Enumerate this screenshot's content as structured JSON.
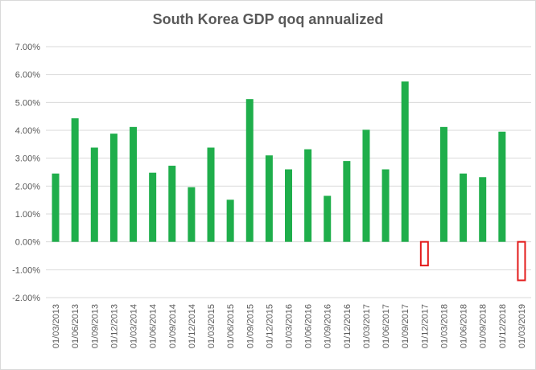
{
  "chart_data": {
    "type": "bar",
    "title": "South Korea GDP qoq annualized",
    "xlabel": "",
    "ylabel": "",
    "ylim": [
      -2,
      7
    ],
    "yticks": [
      -2,
      -1,
      0,
      1,
      2,
      3,
      4,
      5,
      6,
      7
    ],
    "ytick_labels": [
      "-2.00%",
      "-1.00%",
      "0.00%",
      "1.00%",
      "2.00%",
      "3.00%",
      "4.00%",
      "5.00%",
      "6.00%",
      "7.00%"
    ],
    "grid": true,
    "legend": "none",
    "categories": [
      "01/03/2013",
      "01/06/2013",
      "01/09/2013",
      "01/12/2013",
      "01/03/2014",
      "01/06/2014",
      "01/09/2014",
      "01/12/2014",
      "01/03/2015",
      "01/06/2015",
      "01/09/2015",
      "01/12/2015",
      "01/03/2016",
      "01/06/2016",
      "01/09/2016",
      "01/12/2016",
      "01/03/2017",
      "01/06/2017",
      "01/09/2017",
      "01/12/2017",
      "01/03/2018",
      "01/06/2018",
      "01/09/2018",
      "01/12/2018",
      "01/03/2019"
    ],
    "values": [
      2.45,
      4.43,
      3.38,
      3.88,
      4.12,
      2.48,
      2.73,
      1.96,
      3.38,
      1.51,
      5.12,
      3.1,
      2.6,
      3.32,
      1.65,
      2.9,
      4.02,
      2.6,
      5.75,
      -0.85,
      4.12,
      2.45,
      2.32,
      3.95,
      -1.38
    ],
    "colors": {
      "positive_fill": "#1fae4b",
      "negative_stroke": "#e31b1b",
      "grid": "#d9d9d9",
      "text": "#595959"
    }
  }
}
